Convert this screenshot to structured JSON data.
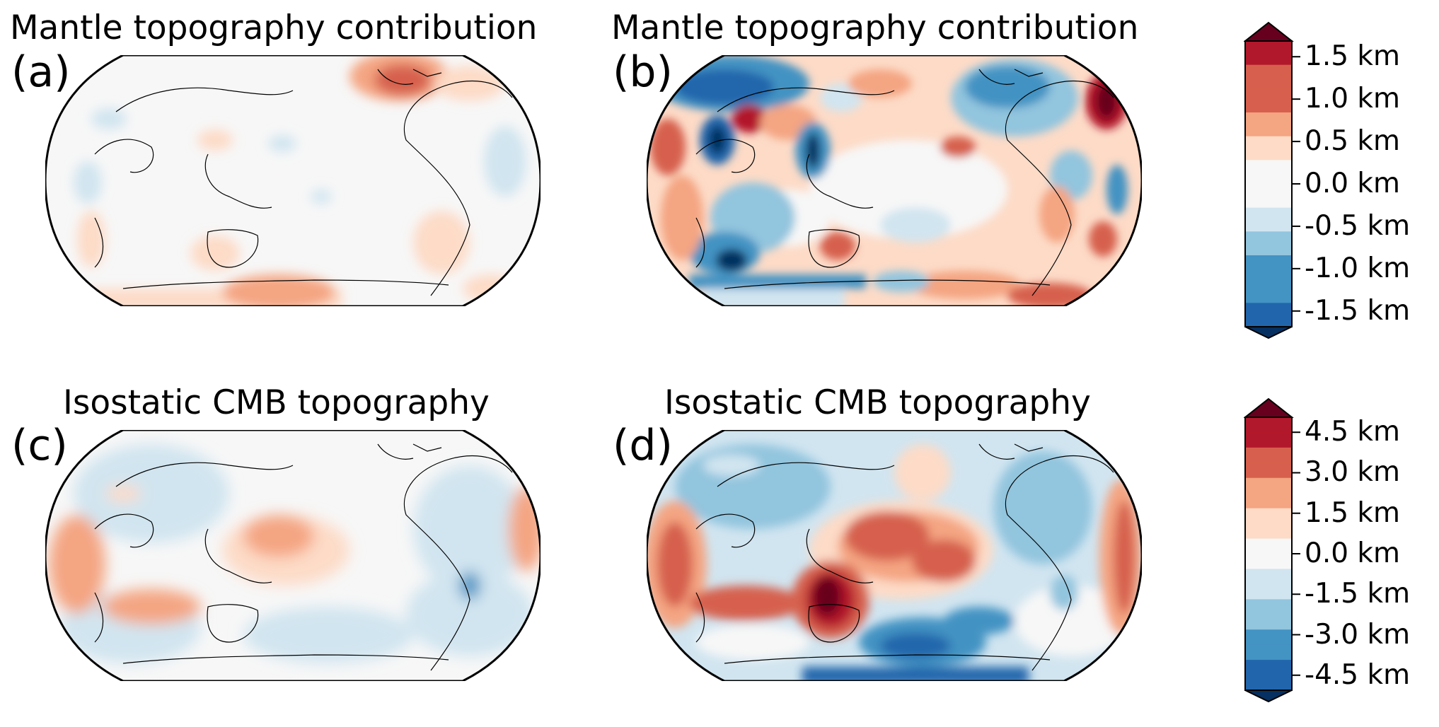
{
  "panels": [
    {
      "id": "a",
      "title": "Mantle topography contribution",
      "label": "(a)",
      "scale": "cb1"
    },
    {
      "id": "b",
      "title": "Mantle topography contribution",
      "label": "(b)",
      "scale": "cb1"
    },
    {
      "id": "c",
      "title": "Isostatic CMB topography",
      "label": "(c)",
      "scale": "cb2"
    },
    {
      "id": "d",
      "title": "Isostatic CMB topography",
      "label": "(d)",
      "scale": "cb2"
    }
  ],
  "colorbars": {
    "cb1": {
      "ticks": [
        "1.5 km",
        "1.0 km",
        "0.5 km",
        "0.0 km",
        "-0.5 km",
        "-1.0 km",
        "-1.5 km"
      ],
      "range_km": [
        -1.5,
        1.5
      ],
      "extend": "both"
    },
    "cb2": {
      "ticks": [
        "4.5 km",
        "3.0 km",
        "1.5 km",
        "0.0 km",
        "-1.5 km",
        "-3.0 km",
        "-4.5 km"
      ],
      "range_km": [
        -4.5,
        4.5
      ],
      "extend": "both"
    }
  },
  "colormap": {
    "name": "RdBu_r",
    "colors": [
      "#053061",
      "#2166ac",
      "#4393c3",
      "#92c5de",
      "#d1e5f0",
      "#f7f7f7",
      "#fddbc7",
      "#f4a582",
      "#d6604d",
      "#b2182b",
      "#67001f"
    ]
  },
  "projection": "Robinson",
  "central_longitude": 180
}
